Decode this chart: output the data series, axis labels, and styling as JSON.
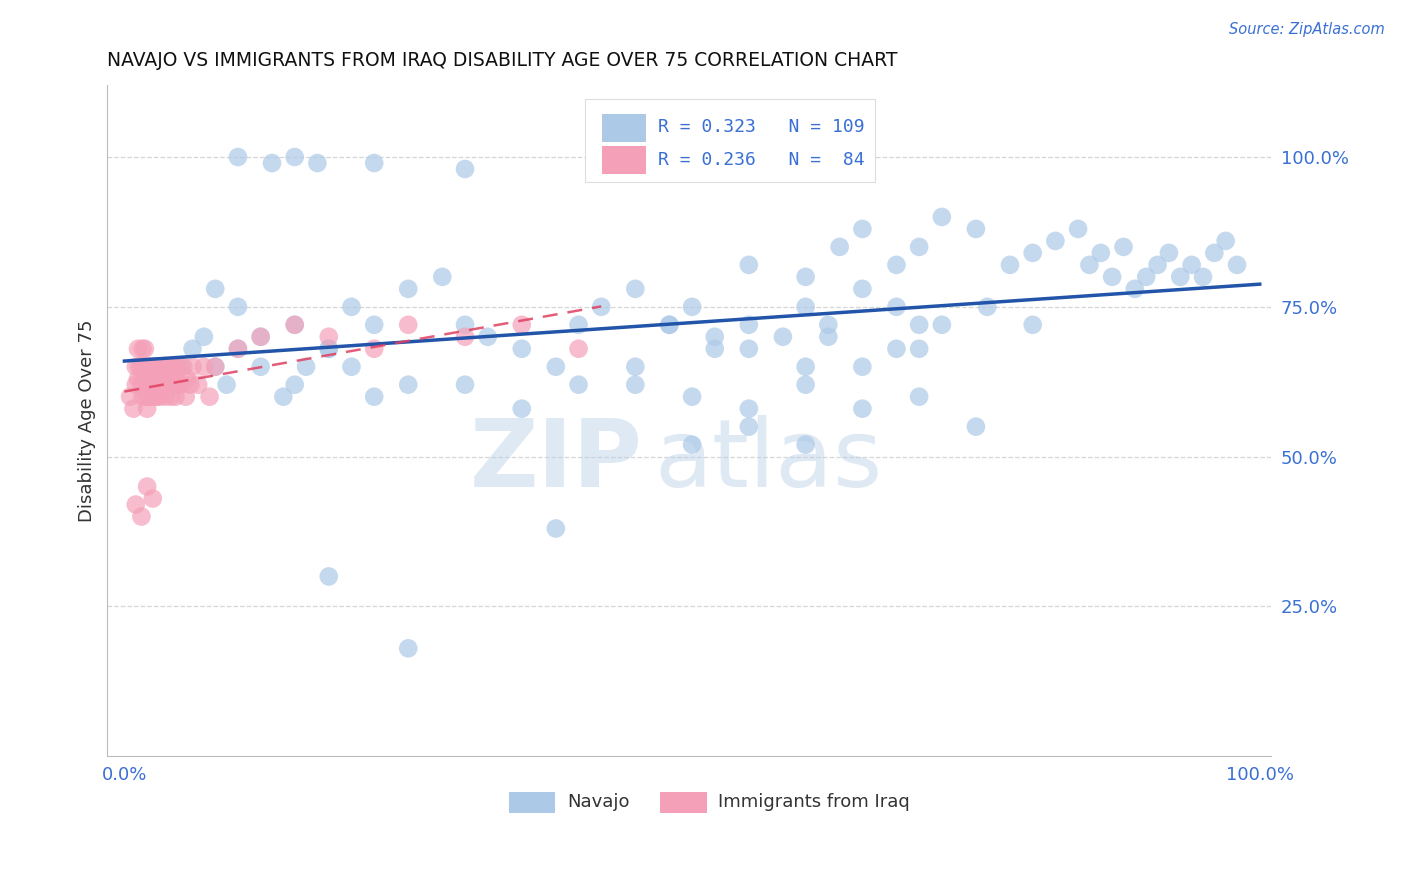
{
  "title": "NAVAJO VS IMMIGRANTS FROM IRAQ DISABILITY AGE OVER 75 CORRELATION CHART",
  "source": "Source: ZipAtlas.com",
  "ylabel": "Disability Age Over 75",
  "watermark_zip": "ZIP",
  "watermark_atlas": "atlas",
  "navajo_R": 0.323,
  "navajo_N": 109,
  "iraq_R": 0.236,
  "iraq_N": 84,
  "navajo_color": "#adc9e8",
  "iraq_color": "#f4a0b8",
  "navajo_line_color": "#2255aa",
  "iraq_line_color": "#e04060",
  "background_color": "#ffffff",
  "grid_color": "#cccccc",
  "text_color": "#3a70d4",
  "title_color": "#111111",
  "ytick_labels": [
    "25.0%",
    "50.0%",
    "75.0%",
    "100.0%"
  ],
  "xtick_labels": [
    "0.0%",
    "100.0%"
  ],
  "legend_label_navajo": "Navajo",
  "legend_label_iraq": "Immigrants from Iraq"
}
